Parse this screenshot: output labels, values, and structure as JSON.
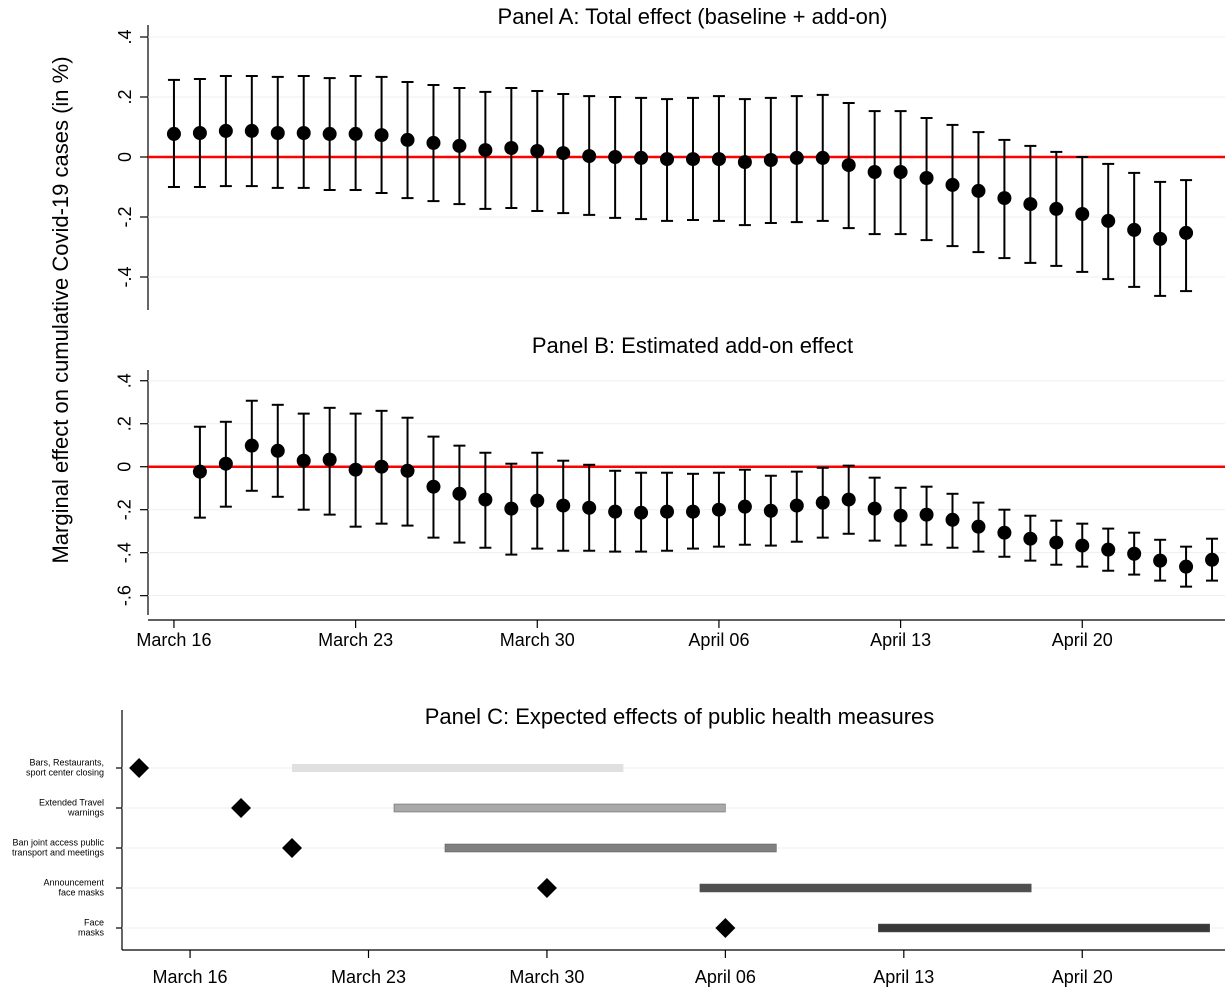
{
  "chart_data": [
    {
      "type": "coefplot",
      "title": "Panel A: Total effect (baseline + add-on)",
      "ylabel": "Marginal effect on cumulative Covid-19 cases (in %)",
      "x": [
        16,
        17,
        18,
        19,
        20,
        21,
        22,
        23,
        24,
        25,
        26,
        27,
        28,
        29,
        30,
        31,
        32,
        33,
        34,
        35,
        36,
        37,
        38,
        39,
        40,
        41,
        42,
        43,
        44,
        45,
        46,
        47,
        48,
        49,
        50,
        51,
        52,
        53,
        54,
        55
      ],
      "values": [
        0.077,
        0.08,
        0.087,
        0.087,
        0.08,
        0.08,
        0.077,
        0.077,
        0.073,
        0.057,
        0.047,
        0.037,
        0.023,
        0.03,
        0.02,
        0.013,
        0.003,
        0,
        -0.003,
        -0.007,
        -0.007,
        -0.007,
        -0.017,
        -0.01,
        -0.003,
        -0.003,
        -0.027,
        -0.05,
        -0.05,
        -0.07,
        -0.093,
        -0.113,
        -0.137,
        -0.157,
        -0.173,
        -0.19,
        -0.213,
        -0.243,
        -0.273,
        -0.253
      ],
      "upper": [
        0.257,
        0.26,
        0.27,
        0.27,
        0.267,
        0.27,
        0.263,
        0.27,
        0.267,
        0.25,
        0.24,
        0.23,
        0.217,
        0.23,
        0.22,
        0.21,
        0.203,
        0.2,
        0.197,
        0.193,
        0.197,
        0.203,
        0.193,
        0.197,
        0.203,
        0.207,
        0.18,
        0.153,
        0.153,
        0.13,
        0.107,
        0.083,
        0.057,
        0.037,
        0.017,
        0,
        -0.023,
        -0.053,
        -0.083,
        -0.077
      ],
      "lower": [
        -0.1,
        -0.1,
        -0.097,
        -0.097,
        -0.103,
        -0.103,
        -0.11,
        -0.11,
        -0.12,
        -0.137,
        -0.147,
        -0.157,
        -0.173,
        -0.17,
        -0.18,
        -0.187,
        -0.193,
        -0.203,
        -0.207,
        -0.213,
        -0.21,
        -0.213,
        -0.227,
        -0.22,
        -0.217,
        -0.213,
        -0.237,
        -0.257,
        -0.257,
        -0.277,
        -0.297,
        -0.317,
        -0.337,
        -0.353,
        -0.363,
        -0.383,
        -0.407,
        -0.433,
        -0.463,
        -0.447
      ],
      "color": "#000000",
      "refline": 0,
      "refline_color": "#ff0000",
      "grid": true,
      "xlim": [
        15,
        56.5
      ],
      "ylim": [
        -0.51,
        0.44
      ],
      "yticks": [
        {
          "value": -0.4,
          "label": "-.4"
        },
        {
          "value": -0.2,
          "label": "-.2"
        },
        0,
        {
          "value": 0.2,
          "label": ".2"
        },
        {
          "value": 0.4,
          "label": ".4"
        }
      ]
    },
    {
      "type": "coefplot",
      "title": "Panel B: Estimated add-on effect",
      "x": [
        17,
        18,
        19,
        20,
        21,
        22,
        23,
        24,
        25,
        26,
        27,
        28,
        29,
        30,
        31,
        32,
        33,
        34,
        35,
        36,
        37,
        38,
        39,
        40,
        41,
        42,
        43,
        44,
        45,
        46,
        47,
        48,
        49,
        50,
        51,
        52,
        53,
        54,
        55,
        56
      ],
      "values": [
        -0.023,
        0.014,
        0.098,
        0.074,
        0.028,
        0.033,
        -0.014,
        0,
        -0.019,
        -0.093,
        -0.126,
        -0.153,
        -0.195,
        -0.158,
        -0.181,
        -0.191,
        -0.209,
        -0.214,
        -0.209,
        -0.209,
        -0.2,
        -0.186,
        -0.205,
        -0.181,
        -0.167,
        -0.153,
        -0.195,
        -0.228,
        -0.223,
        -0.247,
        -0.279,
        -0.307,
        -0.335,
        -0.353,
        -0.367,
        -0.386,
        -0.405,
        -0.437,
        -0.465,
        -0.433
      ],
      "upper": [
        0.186,
        0.209,
        0.307,
        0.288,
        0.247,
        0.274,
        0.247,
        0.26,
        0.228,
        0.14,
        0.098,
        0.065,
        0.014,
        0.065,
        0.028,
        0.009,
        -0.019,
        -0.028,
        -0.028,
        -0.033,
        -0.028,
        -0.014,
        -0.042,
        -0.023,
        -0.005,
        0.005,
        -0.051,
        -0.098,
        -0.093,
        -0.126,
        -0.167,
        -0.2,
        -0.228,
        -0.251,
        -0.265,
        -0.288,
        -0.307,
        -0.34,
        -0.372,
        -0.335
      ],
      "lower": [
        -0.237,
        -0.186,
        -0.112,
        -0.14,
        -0.2,
        -0.223,
        -0.279,
        -0.265,
        -0.274,
        -0.33,
        -0.353,
        -0.377,
        -0.409,
        -0.381,
        -0.391,
        -0.391,
        -0.395,
        -0.395,
        -0.391,
        -0.381,
        -0.372,
        -0.363,
        -0.367,
        -0.349,
        -0.33,
        -0.312,
        -0.344,
        -0.367,
        -0.363,
        -0.377,
        -0.395,
        -0.419,
        -0.437,
        -0.456,
        -0.465,
        -0.484,
        -0.502,
        -0.53,
        -0.558,
        -0.53
      ],
      "color": "#000000",
      "refline": 0,
      "refline_color": "#ff0000",
      "grid": true,
      "xlim": [
        15,
        56.5
      ],
      "ylim": [
        -0.69,
        0.45
      ],
      "yticks": [
        {
          "value": -0.6,
          "label": "-.6"
        },
        {
          "value": -0.4,
          "label": "-.4"
        },
        {
          "value": -0.2,
          "label": "-.2"
        },
        0,
        {
          "value": 0.2,
          "label": ".2"
        },
        {
          "value": 0.4,
          "label": ".4"
        }
      ],
      "xticks": [
        {
          "value": 16,
          "label": "March 16"
        },
        {
          "value": 23,
          "label": "March 23"
        },
        {
          "value": 30,
          "label": "March 30"
        },
        {
          "value": 37,
          "label": "April 06"
        },
        {
          "value": 44,
          "label": "April 13"
        },
        {
          "value": 51,
          "label": "April 20"
        }
      ]
    },
    {
      "type": "timeline",
      "title": "Panel C: Expected effects of public health measures",
      "categories": [
        [
          "Bars, Restaurants,",
          "sport center closing"
        ],
        [
          "Extended Travel",
          "warnings"
        ],
        [
          "Ban joint access public",
          "transport and meetings"
        ],
        [
          "Announcement",
          "face masks"
        ],
        [
          "Face",
          "masks"
        ]
      ],
      "events": [
        14,
        18,
        20,
        30,
        37
      ],
      "start": [
        20,
        24,
        26,
        36,
        43
      ],
      "end": [
        33,
        37,
        39,
        49,
        56
      ],
      "colors": [
        "#e0e0e0",
        "#a9a9a9",
        "#808080",
        "#4f4f4f",
        "#383838"
      ],
      "marker_color": "#000000",
      "grid": true,
      "xlim": [
        13.33,
        56.6
      ],
      "xticks": [
        {
          "value": 16,
          "label": "March 16"
        },
        {
          "value": 23,
          "label": "March 23"
        },
        {
          "value": 30,
          "label": "March 30"
        },
        {
          "value": 37,
          "label": "April 06"
        },
        {
          "value": 44,
          "label": "April 13"
        },
        {
          "value": 51,
          "label": "April 20"
        }
      ]
    }
  ]
}
